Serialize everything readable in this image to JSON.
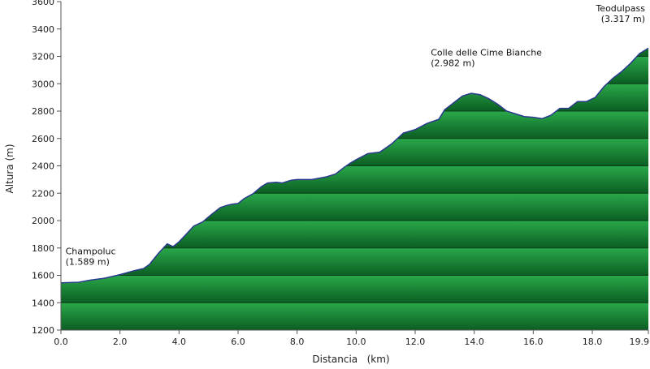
{
  "chart_data": {
    "type": "area",
    "title": "",
    "xlabel": "Distancia   (km)",
    "ylabel": "Altura (m)",
    "xlim": [
      0,
      19.9
    ],
    "ylim": [
      1200,
      3600
    ],
    "x_ticks": [
      0,
      2,
      4,
      6,
      8,
      10,
      12,
      14,
      16,
      18,
      19.9
    ],
    "x_tick_labels": [
      "0.0",
      "2.0",
      "4.0",
      "6.0",
      "8.0",
      "10.0",
      "12.0",
      "14.0",
      "16.0",
      "18.0",
      "19.9"
    ],
    "y_ticks": [
      1200,
      1400,
      1600,
      1800,
      2000,
      2200,
      2400,
      2600,
      2800,
      3000,
      3200,
      3400,
      3600
    ],
    "y_tick_labels": [
      "1200",
      "1400",
      "1600",
      "1800",
      "2000",
      "2200",
      "2400",
      "2600",
      "2800",
      "3000",
      "3200",
      "3400",
      "3600"
    ],
    "grid": true,
    "colors": {
      "fill_top": "#2aa84a",
      "fill_bottom": "#0a5a20",
      "line": "#2b3a8f",
      "band_line": "#0b3d18"
    },
    "series": [
      {
        "x": [
          0,
          0.6,
          1.0,
          1.5,
          2.0,
          2.5,
          2.8,
          3.0,
          3.3,
          3.6,
          3.8,
          4.0,
          4.2,
          4.5,
          4.8,
          5.1,
          5.4,
          5.6,
          5.8,
          6.0,
          6.2,
          6.5,
          6.8,
          7.0,
          7.3,
          7.5,
          7.8,
          8.0,
          8.5,
          9.0,
          9.3,
          9.6,
          9.8,
          10.0,
          10.4,
          10.8,
          11.2,
          11.6,
          12.0,
          12.4,
          12.8,
          13.0,
          13.3,
          13.6,
          13.9,
          14.2,
          14.5,
          14.8,
          15.1,
          15.4,
          15.7,
          16.0,
          16.3,
          16.6,
          16.9,
          17.2,
          17.5,
          17.8,
          18.1,
          18.4,
          18.7,
          19.0,
          19.3,
          19.6,
          19.9
        ],
        "y": [
          1545,
          1550,
          1565,
          1580,
          1605,
          1635,
          1650,
          1680,
          1760,
          1830,
          1810,
          1845,
          1890,
          1960,
          1990,
          2045,
          2095,
          2110,
          2120,
          2125,
          2160,
          2195,
          2250,
          2275,
          2280,
          2275,
          2295,
          2300,
          2300,
          2320,
          2340,
          2390,
          2420,
          2445,
          2490,
          2500,
          2560,
          2640,
          2665,
          2710,
          2740,
          2810,
          2860,
          2910,
          2930,
          2920,
          2890,
          2850,
          2800,
          2780,
          2760,
          2755,
          2745,
          2770,
          2820,
          2820,
          2870,
          2870,
          2900,
          2980,
          3040,
          3090,
          3150,
          3220,
          3260
        ]
      }
    ],
    "annotations": [
      {
        "label": "Champoluc",
        "sub": "(1.589 m)",
        "x": 0.1,
        "y": 1589
      },
      {
        "label": "Colle delle Cime Bianche",
        "sub": "(2.982 m)",
        "x": 13.3,
        "y": 2982
      },
      {
        "label": "Teodulpass",
        "sub": "(3.317 m)",
        "x": 19.9,
        "y": 3317
      }
    ]
  }
}
